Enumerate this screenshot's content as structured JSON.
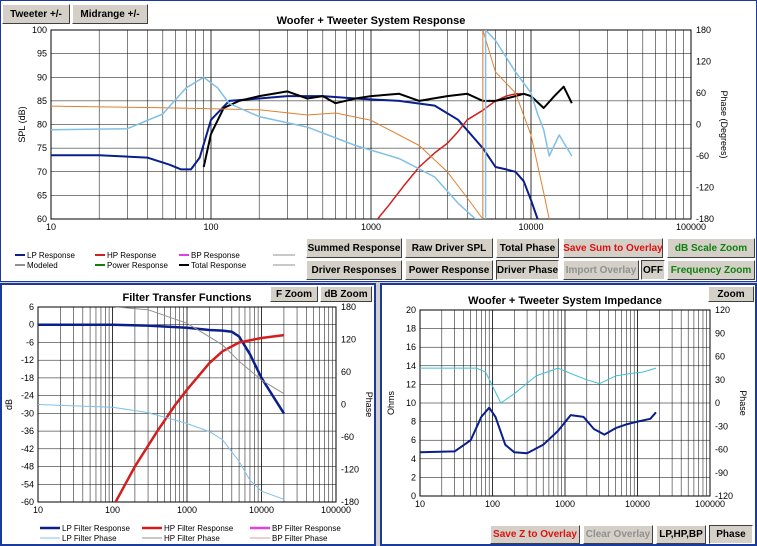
{
  "top_tabs": {
    "tweeter": "Tweeter +/-",
    "midrange": "Midrange +/-"
  },
  "response_chart": {
    "title": "Woofer + Tweeter    System Response",
    "ylabel": "SPL (dB)",
    "y2label": "Phase (Degrees)",
    "y_ticks": [
      "100",
      "95",
      "90",
      "85",
      "80",
      "75",
      "70",
      "65",
      "60"
    ],
    "y2_ticks": [
      "180",
      "120",
      "60",
      "0",
      "-60",
      "-120",
      "-180"
    ],
    "x_ticks": [
      "10",
      "100",
      "1000",
      "10000",
      "100000"
    ],
    "legend": {
      "lp": "LP Response",
      "hp": "HP Response",
      "bp": "BP Response",
      "modeled": "Modeled",
      "power": "Power Response",
      "total": "Total Response"
    }
  },
  "buttons": {
    "summed_response": "Summed Response",
    "raw_driver_spl": "Raw Driver SPL",
    "total_phase": "Total Phase",
    "save_sum": "Save Sum to Overlay",
    "db_scale_zoom": "dB Scale Zoom",
    "driver_responses": "Driver Responses",
    "power_response": "Power Response",
    "driver_phase": "Driver Phase",
    "import_overlay": "Import Overlay",
    "off": "OFF",
    "frequency_zoom": "Frequency Zoom"
  },
  "filter_chart": {
    "title": "Filter Transfer Functions",
    "f_zoom": "F Zoom",
    "db_zoom": "dB Zoom",
    "ylabel": "dB",
    "y2label": "Phase",
    "y_ticks": [
      "6",
      "0",
      "-6",
      "-12",
      "-18",
      "-24",
      "-30",
      "-36",
      "-42",
      "-48",
      "-54",
      "-60"
    ],
    "y2_ticks": [
      "180",
      "120",
      "60",
      "0",
      "-60",
      "-120",
      "-180"
    ],
    "x_ticks": [
      "10",
      "100",
      "1000",
      "10000",
      "100000"
    ],
    "legend": {
      "lp": "LP Filter Response",
      "hp": "HP Filter Response",
      "bp": "BP Filter Response",
      "lp_phase": "LP Filter Phase",
      "hp_phase": "HP Filter Phase",
      "bp_phase": "BP Filter Phase"
    }
  },
  "impedance_chart": {
    "title": "Woofer + Tweeter    System Impedance",
    "zoom": "Zoom",
    "ylabel": "Ohms",
    "y2label": "Phase",
    "y_ticks": [
      "20",
      "18",
      "16",
      "14",
      "12",
      "10",
      "8",
      "6",
      "4",
      "2",
      "0"
    ],
    "y2_ticks": [
      "120",
      "90",
      "60",
      "30",
      "0",
      "-30",
      "-60",
      "-90",
      "-120"
    ],
    "x_ticks": [
      "10",
      "100",
      "1000",
      "10000",
      "100000"
    ],
    "buttons": {
      "save_z": "Save Z to Overlay",
      "clear_overlay": "Clear Overlay",
      "lphpbp": "LP,HP,BP",
      "phase": "Phase"
    }
  },
  "colors": {
    "lp": "#0a1e8c",
    "hp": "#d21e1e",
    "bp": "#e040e0",
    "power": "#108010",
    "total": "#000000",
    "modeled": "#909090",
    "phase_light": "#80c0e8",
    "orange": "#e08030"
  },
  "chart_data": [
    {
      "type": "line",
      "title": "Woofer + Tweeter    System Response",
      "xlabel": "",
      "ylabel": "SPL (dB)",
      "y2label": "Phase (Degrees)",
      "xscale": "log",
      "xlim": [
        10,
        100000
      ],
      "ylim": [
        60,
        100
      ],
      "y2lim": [
        -180,
        180
      ],
      "series": [
        {
          "name": "LP Response",
          "color": "#0a1e8c",
          "width": 2,
          "axis": "y",
          "x": [
            10,
            20,
            40,
            55,
            65,
            75,
            85,
            100,
            130,
            200,
            300,
            500,
            800,
            1500,
            2500,
            3500,
            5000,
            6000,
            7000,
            8000,
            9000,
            10000,
            11000
          ],
          "y": [
            73.5,
            73.5,
            73,
            71.5,
            70.5,
            70.5,
            73,
            81,
            85,
            85.5,
            86,
            86,
            85.5,
            85,
            84,
            81,
            75,
            71,
            70.5,
            70,
            68,
            64,
            60
          ]
        },
        {
          "name": "HP Response",
          "color": "#d21e1e",
          "width": 1.5,
          "axis": "y",
          "x": [
            1100,
            1300,
            1600,
            2000,
            2500,
            3000,
            3500,
            4000,
            5000,
            6000,
            7000,
            8000,
            9000,
            10000
          ],
          "y": [
            60,
            63,
            67,
            71,
            74,
            76,
            78.5,
            81,
            83,
            85,
            86,
            86.5,
            86.5,
            86
          ]
        },
        {
          "name": "Total Response",
          "color": "#000000",
          "width": 2,
          "axis": "y",
          "x": [
            90,
            100,
            120,
            150,
            200,
            300,
            400,
            500,
            600,
            800,
            1000,
            1500,
            2000,
            3000,
            4000,
            5000,
            6000,
            7000,
            8000,
            9000,
            10000,
            12000,
            14000,
            16000,
            18000
          ],
          "y": [
            71,
            78,
            83.5,
            85,
            86,
            87,
            85.5,
            86,
            84.5,
            85.5,
            86,
            86.5,
            85,
            86,
            86.5,
            85,
            85,
            85.5,
            86,
            86.5,
            86,
            83.5,
            86,
            88,
            84.5
          ]
        },
        {
          "name": "",
          "color": "#e08030",
          "width": 1,
          "axis": "y2",
          "x": [
            10,
            50,
            100,
            200,
            400,
            600,
            1000,
            2000,
            3000,
            4000,
            5000
          ],
          "y": [
            35,
            32,
            30,
            28,
            18,
            22,
            8,
            -40,
            -90,
            -140,
            -180
          ]
        },
        {
          "name": "",
          "color": "#80c0e8",
          "width": 1.5,
          "axis": "y2",
          "x": [
            10,
            30,
            50,
            70,
            90,
            110,
            130,
            200,
            400,
            800,
            1500,
            2500,
            3500,
            4500,
            5000
          ],
          "y": [
            -10,
            -8,
            20,
            70,
            90,
            70,
            40,
            15,
            -5,
            -40,
            -65,
            -100,
            -150,
            -180,
            -180
          ]
        },
        {
          "name": "",
          "color": "#e08030",
          "width": 1,
          "axis": "y2",
          "x": [
            5000,
            5000,
            6000,
            8000,
            10000,
            12000,
            13000
          ],
          "y": [
            -180,
            180,
            100,
            60,
            -20,
            -130,
            -180
          ]
        },
        {
          "name": "",
          "color": "#80c0e8",
          "width": 1.5,
          "axis": "y2",
          "x": [
            5200,
            5200,
            6000,
            8000,
            10000,
            11000,
            12000,
            13000,
            15000,
            18000
          ],
          "y": [
            -180,
            180,
            160,
            100,
            60,
            20,
            -10,
            -60,
            -20,
            -60
          ]
        }
      ]
    },
    {
      "type": "line",
      "title": "Filter Transfer Functions",
      "xlabel": "",
      "ylabel": "dB",
      "y2label": "Phase",
      "xscale": "log",
      "xlim": [
        10,
        100000
      ],
      "ylim": [
        -60,
        6
      ],
      "y2lim": [
        -180,
        180
      ],
      "series": [
        {
          "name": "LP Filter Response",
          "color": "#0a1e8c",
          "width": 2.5,
          "axis": "y",
          "x": [
            10,
            100,
            300,
            1000,
            2000,
            3000,
            4000,
            5000,
            7000,
            10000,
            20000
          ],
          "y": [
            0,
            0,
            -0.3,
            -1,
            -1.8,
            -2,
            -2.4,
            -4,
            -10,
            -18,
            -30
          ]
        },
        {
          "name": "HP Filter Response",
          "color": "#d21e1e",
          "width": 2.5,
          "axis": "y",
          "x": [
            110,
            200,
            400,
            700,
            1000,
            2000,
            3000,
            5000,
            10000,
            20000
          ],
          "y": [
            -60,
            -48,
            -36,
            -27,
            -22,
            -13,
            -9,
            -6,
            -4.5,
            -3.5
          ]
        },
        {
          "name": "LP Filter Phase",
          "color": "#80c0e8",
          "width": 1,
          "axis": "y2",
          "x": [
            10,
            100,
            300,
            1000,
            2000,
            3000,
            5000,
            7000,
            10000,
            20000
          ],
          "y": [
            0,
            -5,
            -15,
            -35,
            -50,
            -65,
            -105,
            -140,
            -160,
            -175
          ]
        },
        {
          "name": "HP Filter Phase",
          "color": "#909090",
          "width": 1,
          "axis": "y2",
          "x": [
            110,
            300,
            1000,
            2000,
            3000,
            5000,
            10000,
            20000
          ],
          "y": [
            180,
            175,
            150,
            125,
            110,
            80,
            45,
            20
          ]
        }
      ]
    },
    {
      "type": "line",
      "title": "Woofer + Tweeter    System Impedance",
      "xlabel": "",
      "ylabel": "Ohms",
      "y2label": "Phase",
      "xscale": "log",
      "xlim": [
        10,
        100000
      ],
      "ylim": [
        0,
        20
      ],
      "y2lim": [
        -120,
        120
      ],
      "series": [
        {
          "name": "",
          "color": "#0a1e8c",
          "width": 2,
          "axis": "y",
          "x": [
            10,
            30,
            50,
            70,
            90,
            110,
            150,
            200,
            300,
            500,
            800,
            1200,
            1800,
            2500,
            3500,
            5000,
            7000,
            10000,
            15000,
            18000
          ],
          "y": [
            4.7,
            4.8,
            6,
            8.5,
            9.5,
            8.5,
            5.5,
            4.7,
            4.6,
            5.5,
            7,
            8.7,
            8.5,
            7.2,
            6.6,
            7.3,
            7.7,
            8,
            8.3,
            9
          ]
        },
        {
          "name": "",
          "color": "#40c0d8",
          "width": 1,
          "axis": "y2",
          "x": [
            10,
            20,
            40,
            60,
            80,
            100,
            130,
            200,
            400,
            800,
            1200,
            2000,
            3000,
            5000,
            8000,
            12000,
            18000
          ],
          "y": [
            45,
            45,
            45,
            45,
            40,
            22,
            0,
            12,
            35,
            45,
            38,
            30,
            25,
            35,
            38,
            40,
            45
          ]
        }
      ]
    }
  ]
}
